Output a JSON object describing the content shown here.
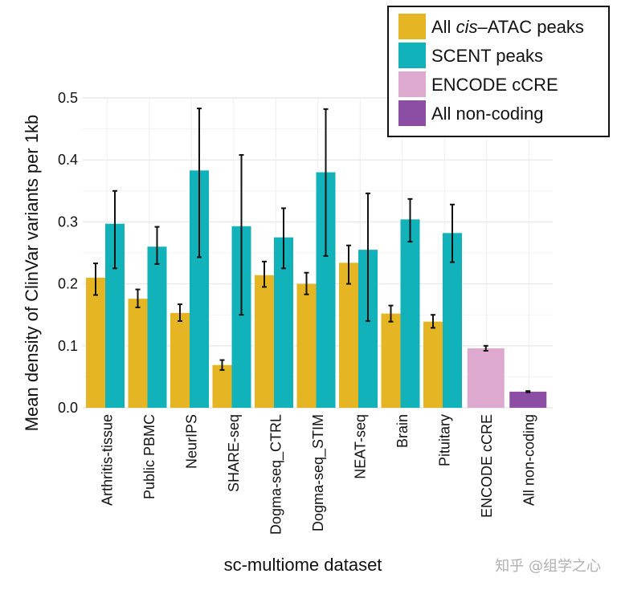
{
  "chart_data": {
    "type": "bar",
    "xlabel": "sc-multiome dataset",
    "ylabel": "Mean density of ClinVar variants per 1kb",
    "ylim": [
      0,
      0.5
    ],
    "yticks": [
      "0.0",
      "0.1",
      "0.2",
      "0.3",
      "0.4",
      "0.5"
    ],
    "grid": true,
    "legend_position": "top-right",
    "categories": [
      "Arthritis-tissue",
      "Public PBMC",
      "NeurIPS",
      "SHARE-seq",
      "Dogma-seq_CTRL",
      "Dogma-seq_STIM",
      "NEAT-seq",
      "Brain",
      "Pituitary",
      "ENCODE cCRE",
      "All non-coding"
    ],
    "series": [
      {
        "name_prefix": "All ",
        "name_italic": "cis",
        "name_suffix": "–ATAC peaks",
        "color": "#E5B523",
        "values": [
          0.21,
          0.176,
          0.153,
          0.069,
          0.214,
          0.2,
          0.234,
          0.152,
          0.139,
          null,
          null
        ],
        "error": [
          [
            0.182,
            0.233
          ],
          [
            0.162,
            0.191
          ],
          [
            0.14,
            0.167
          ],
          [
            0.061,
            0.077
          ],
          [
            0.195,
            0.236
          ],
          [
            0.183,
            0.218
          ],
          [
            0.2,
            0.262
          ],
          [
            0.139,
            0.165
          ],
          [
            0.129,
            0.15
          ],
          null,
          null
        ]
      },
      {
        "name": "SCENT peaks",
        "color": "#12B2BA",
        "values": [
          0.297,
          0.26,
          0.383,
          0.293,
          0.275,
          0.38,
          0.255,
          0.304,
          0.282,
          null,
          null
        ],
        "error": [
          [
            0.225,
            0.35
          ],
          [
            0.232,
            0.292
          ],
          [
            0.243,
            0.483
          ],
          [
            0.15,
            0.408
          ],
          [
            0.225,
            0.322
          ],
          [
            0.245,
            0.482
          ],
          [
            0.14,
            0.346
          ],
          [
            0.268,
            0.337
          ],
          [
            0.235,
            0.328
          ],
          null,
          null
        ]
      },
      {
        "name": "ENCODE cCRE",
        "color": "#DDA9CE",
        "values": [
          null,
          null,
          null,
          null,
          null,
          null,
          null,
          null,
          null,
          0.096,
          null
        ],
        "error": [
          null,
          null,
          null,
          null,
          null,
          null,
          null,
          null,
          null,
          [
            0.092,
            0.1
          ],
          null
        ]
      },
      {
        "name": "All non-coding",
        "color": "#8B4EA4",
        "values": [
          null,
          null,
          null,
          null,
          null,
          null,
          null,
          null,
          null,
          null,
          0.026
        ],
        "error": [
          null,
          null,
          null,
          null,
          null,
          null,
          null,
          null,
          null,
          null,
          [
            0.025,
            0.027
          ]
        ]
      }
    ]
  },
  "watermark": "知乎 @组学之心"
}
